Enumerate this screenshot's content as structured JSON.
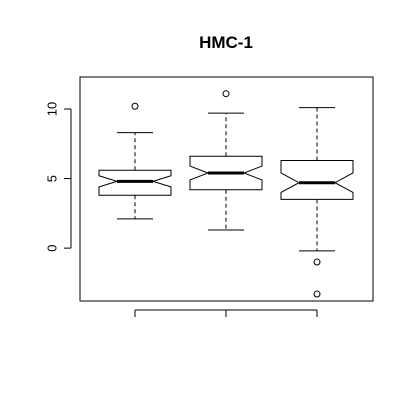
{
  "chart_data": {
    "type": "boxplot",
    "title": "HMC-1",
    "xlabel": "",
    "ylabel": "",
    "ylim": [
      -3.8,
      12.3
    ],
    "yticks": [
      0,
      5,
      10
    ],
    "grid": false,
    "notched": true,
    "series": [
      {
        "whisker_low": 2.1,
        "q1": 3.8,
        "median": 4.8,
        "q3": 5.6,
        "whisker_high": 8.3,
        "notch_low": 4.4,
        "notch_high": 5.2,
        "outliers": [
          10.2
        ]
      },
      {
        "whisker_low": 1.3,
        "q1": 4.2,
        "median": 5.4,
        "q3": 6.6,
        "whisker_high": 9.7,
        "notch_low": 4.9,
        "notch_high": 5.9,
        "outliers": [
          11.1
        ]
      },
      {
        "whisker_low": -0.2,
        "q1": 3.5,
        "median": 4.7,
        "q3": 6.3,
        "whisker_high": 10.1,
        "notch_low": 4.0,
        "notch_high": 5.4,
        "outliers": [
          -1.0,
          -3.3
        ]
      }
    ]
  }
}
